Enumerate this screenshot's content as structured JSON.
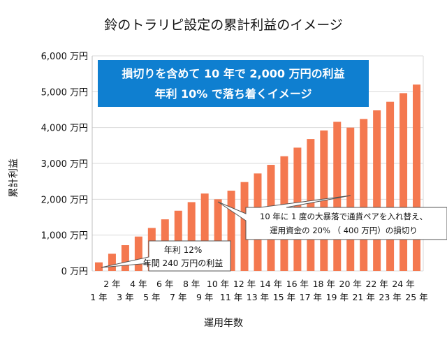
{
  "chart_data": {
    "type": "bar",
    "title": "鈴のトラリピ設定の累計利益のイメージ",
    "xlabel": "運用年数",
    "ylabel": "累計利益",
    "ylim": [
      0,
      6000
    ],
    "yticks": [
      0,
      1000,
      2000,
      3000,
      4000,
      5000,
      6000
    ],
    "ytick_labels": [
      "0 万円",
      "1,000 万円",
      "2,000 万円",
      "3,000 万円",
      "4,000 万円",
      "5,000 万円",
      "6,000 万円"
    ],
    "grid": true,
    "bar_color": "#F4784F",
    "categories": [
      "1 年",
      "2 年",
      "3 年",
      "4 年",
      "5 年",
      "6 年",
      "7 年",
      "8 年",
      "9 年",
      "10 年",
      "11 年",
      "12 年",
      "13 年",
      "14 年",
      "15 年",
      "16 年",
      "17 年",
      "18 年",
      "19 年",
      "20 年",
      "21 年",
      "22 年",
      "23 年",
      "24 年",
      "25 年"
    ],
    "values": [
      240,
      480,
      720,
      960,
      1200,
      1440,
      1680,
      1920,
      2160,
      2000,
      2240,
      2480,
      2720,
      2960,
      3200,
      3440,
      3680,
      3920,
      4160,
      4000,
      4240,
      4480,
      4720,
      4960,
      5200
    ],
    "banner": {
      "line1": "損切りを含めて 10 年で 2,000 万円の利益",
      "line2": "年利 10% で落ち着くイメージ",
      "color": "#0F7FD0"
    },
    "annotations": [
      {
        "line1": "年利 12%",
        "line2": "年間 240 万円の利益"
      },
      {
        "line1": "10 年に 1 度の大暴落で通貨ペアを入れ替え、",
        "line2": "運用資金の 20% （ 400 万円）の損切り"
      }
    ]
  }
}
